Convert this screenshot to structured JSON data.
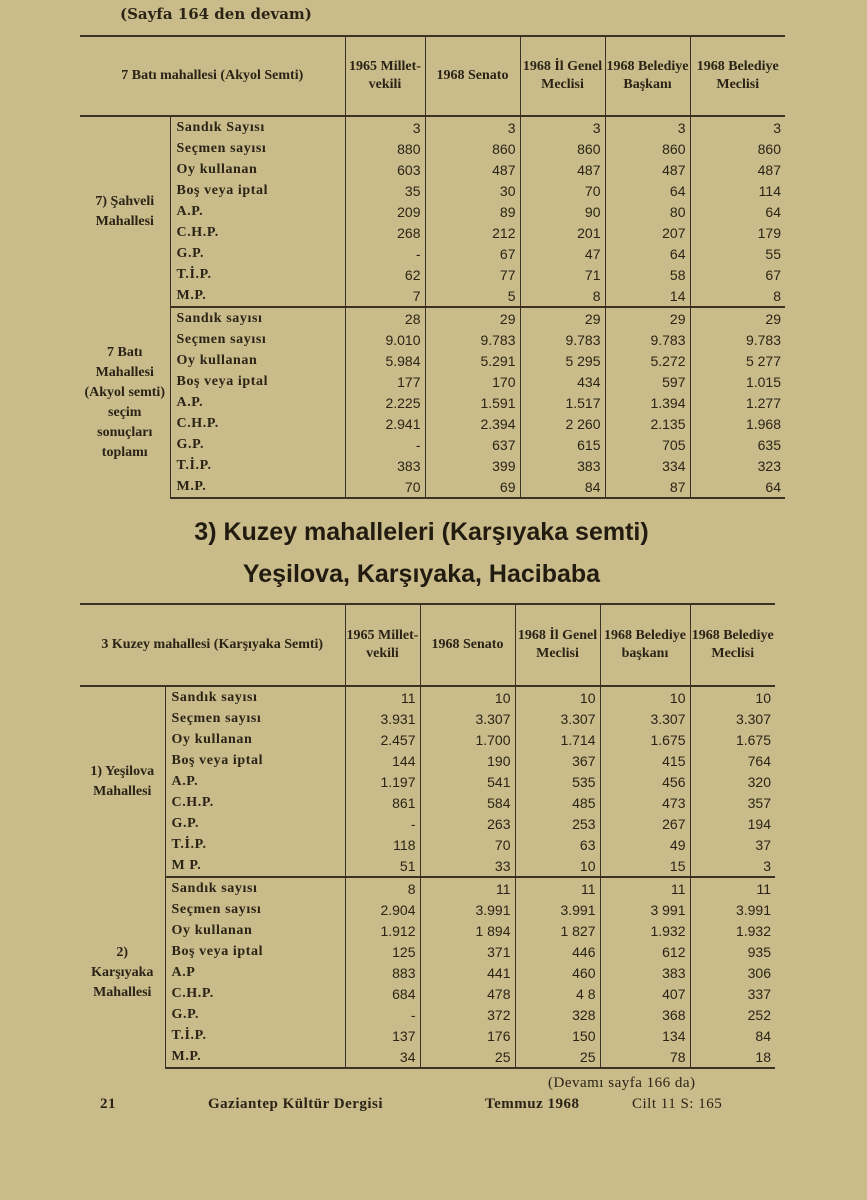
{
  "continued_from": "(Sayfa 164 den devam)",
  "row_labels": [
    "Sandık Sayısı",
    "Seçmen sayısı",
    "Oy kullanan",
    "Boş veya iptal",
    "A.P.",
    "C.H.P.",
    "G.P.",
    "T.İ.P.",
    "M.P."
  ],
  "table1": {
    "corner": "7 Batı mahallesi (Akyol Semti)",
    "columns": [
      "1965 Millet-vekili",
      "1968 Senato",
      "1968 İl Genel Meclisi",
      "1968 Belediye Başkanı",
      "1968 Belediye Meclisi"
    ],
    "blocks": [
      {
        "region": "7) Şahveli Mahallesi",
        "labels": [
          "Sandık Sayısı",
          "Seçmen sayısı",
          "Oy kullanan",
          "Boş veya iptal",
          "A.P.",
          "C.H.P.",
          "G.P.",
          "T.İ.P.",
          "M.P."
        ],
        "rows": [
          [
            "3",
            "3",
            "3",
            "3",
            "3"
          ],
          [
            "880",
            "860",
            "860",
            "860",
            "860"
          ],
          [
            "603",
            "487",
            "487",
            "487",
            "487"
          ],
          [
            "35",
            "30",
            "70",
            "64",
            "114"
          ],
          [
            "209",
            "89",
            "90",
            "80",
            "64"
          ],
          [
            "268",
            "212",
            "201",
            "207",
            "179"
          ],
          [
            "-",
            "67",
            "47",
            "64",
            "55"
          ],
          [
            "62",
            "77",
            "71",
            "58",
            "67"
          ],
          [
            "7",
            "5",
            "8",
            "14",
            "8"
          ]
        ]
      },
      {
        "region": "7 Batı Mahallesi (Akyol semti) seçim sonuçları toplamı",
        "labels": [
          "Sandık sayısı",
          "Seçmen sayısı",
          "Oy kullanan",
          "Boş veya iptal",
          "A.P.",
          "C.H.P.",
          "G.P.",
          "T.İ.P.",
          "M.P."
        ],
        "rows": [
          [
            "28",
            "29",
            "29",
            "29",
            "29"
          ],
          [
            "9.010",
            "9.783",
            "9.783",
            "9.783",
            "9.783"
          ],
          [
            "5.984",
            "5.291",
            "5 295",
            "5.272",
            "5 277"
          ],
          [
            "177",
            "170",
            "434",
            "597",
            "1.015"
          ],
          [
            "2.225",
            "1.591",
            "1.517",
            "1.394",
            "1.277"
          ],
          [
            "2.941",
            "2.394",
            "2 260",
            "2.135",
            "1.968"
          ],
          [
            "-",
            "637",
            "615",
            "705",
            "635"
          ],
          [
            "383",
            "399",
            "383",
            "334",
            "323"
          ],
          [
            "70",
            "69",
            "84",
            "87",
            "64"
          ]
        ]
      }
    ]
  },
  "heading1": "3) Kuzey mahalleleri (Karşıyaka semti)",
  "heading2": "Yeşilova, Karşıyaka, Hacibaba",
  "table2": {
    "corner": "3 Kuzey mahallesi (Karşıyaka Semti)",
    "columns": [
      "1965 Millet-vekili",
      "1968 Senato",
      "1968 İl Genel Meclisi",
      "1968 Belediye başkanı",
      "1968 Belediye Meclisi"
    ],
    "blocks": [
      {
        "region": "1) Yeşilova Mahallesi",
        "labels": [
          "Sandık sayısı",
          "Seçmen sayısı",
          "Oy kullanan",
          "Boş veya iptal",
          "A.P.",
          "C.H.P.",
          "G.P.",
          "T.İ.P.",
          "M P."
        ],
        "rows": [
          [
            "11",
            "10",
            "10",
            "10",
            "10"
          ],
          [
            "3.931",
            "3.307",
            "3.307",
            "3.307",
            "3.307"
          ],
          [
            "2.457",
            "1.700",
            "1.714",
            "1.675",
            "1.675"
          ],
          [
            "144",
            "190",
            "367",
            "415",
            "764"
          ],
          [
            "1.197",
            "541",
            "535",
            "456",
            "320"
          ],
          [
            "861",
            "584",
            "485",
            "473",
            "357"
          ],
          [
            "-",
            "263",
            "253",
            "267",
            "194"
          ],
          [
            "118",
            "70",
            "63",
            "49",
            "37"
          ],
          [
            "51",
            "33",
            "10",
            "15",
            "3"
          ]
        ]
      },
      {
        "region": "2) Karşıyaka Mahallesi",
        "labels": [
          "Sandık sayısı",
          "Seçmen sayısı",
          "Oy kullanan",
          "Boş veya iptal",
          "A.P",
          "C.H.P.",
          "G.P.",
          "T.İ.P.",
          "M.P."
        ],
        "rows": [
          [
            "8",
            "11",
            "11",
            "11",
            "11"
          ],
          [
            "2.904",
            "3.991",
            "3.991",
            "3 991",
            "3.991"
          ],
          [
            "1.912",
            "1 894",
            "1 827",
            "1.932",
            "1.932"
          ],
          [
            "125",
            "371",
            "446",
            "612",
            "935"
          ],
          [
            "883",
            "441",
            "460",
            "383",
            "306"
          ],
          [
            "684",
            "478",
            "4 8",
            "407",
            "337"
          ],
          [
            "-",
            "372",
            "328",
            "368",
            "252"
          ],
          [
            "137",
            "176",
            "150",
            "134",
            "84"
          ],
          [
            "34",
            "25",
            "25",
            "78",
            "18"
          ]
        ]
      }
    ]
  },
  "footer": {
    "continued_to": "(Devamı sayfa 166 da)",
    "page_number": "21",
    "journal": "Gaziantep Kültür Dergisi",
    "date": "Temmuz 1968",
    "volume": "Cilt 11 S: 165"
  }
}
